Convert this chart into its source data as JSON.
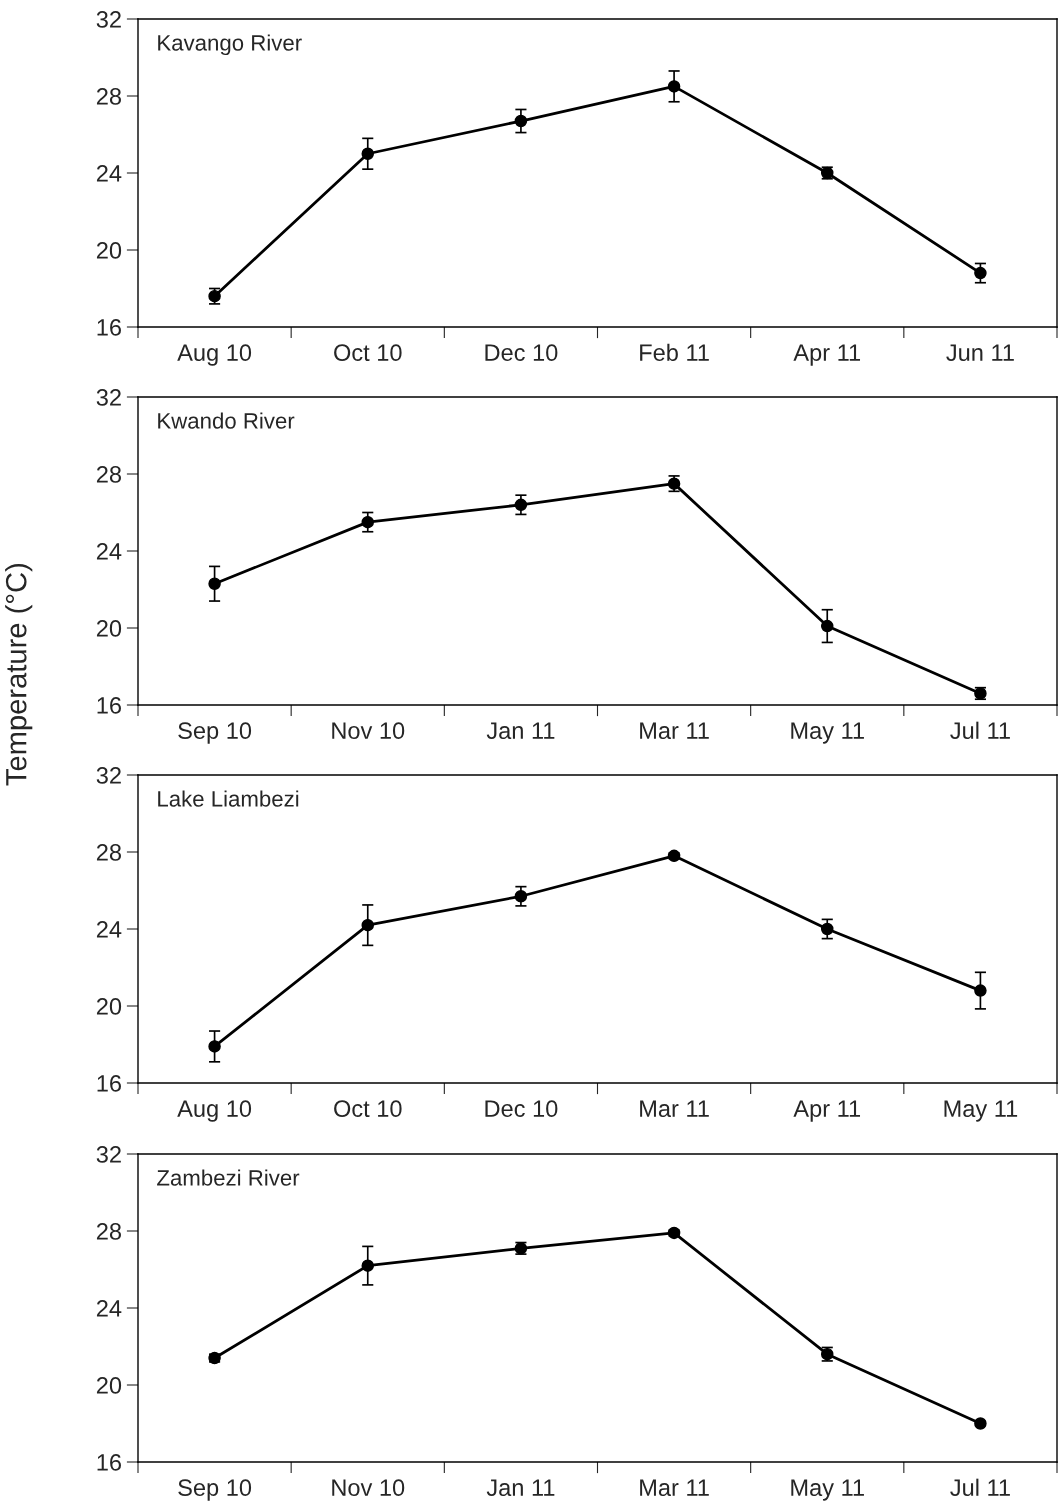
{
  "chart_data": [
    {
      "type": "line",
      "title": "Kavango River",
      "categories": [
        "Aug 10",
        "Oct 10",
        "Dec 10",
        "Feb 11",
        "Apr 11",
        "Jun 11"
      ],
      "series": [
        {
          "color": "#000000",
          "values": [
            17.6,
            25.0,
            26.7,
            28.5,
            24.0,
            18.8
          ],
          "errors": [
            0.4,
            0.8,
            0.6,
            0.8,
            0.3,
            0.5
          ]
        }
      ],
      "ylim": [
        16,
        32
      ],
      "yticks": [
        16,
        20,
        24,
        28,
        32
      ],
      "marker": "circle",
      "line_style": "solid",
      "grid": false,
      "legend": false
    },
    {
      "type": "line",
      "title": "Kwando River",
      "ylabel": "Temperature (°C)",
      "categories": [
        "Sep 10",
        "Nov 10",
        "Jan 11",
        "Mar 11",
        "May 11",
        "Jul 11"
      ],
      "series": [
        {
          "color": "#000000",
          "values": [
            22.3,
            25.5,
            26.4,
            27.5,
            20.1,
            16.6
          ],
          "errors": [
            0.9,
            0.5,
            0.5,
            0.4,
            0.85,
            0.3
          ]
        }
      ],
      "ylim": [
        16,
        32
      ],
      "yticks": [
        16,
        20,
        24,
        28,
        32
      ],
      "marker": "circle",
      "line_style": "solid",
      "grid": false,
      "legend": false
    },
    {
      "type": "line",
      "title": "Lake Liambezi",
      "categories": [
        "Aug 10",
        "Oct 10",
        "Dec 10",
        "Mar 11",
        "Apr 11",
        "May 11"
      ],
      "series": [
        {
          "color": "#000000",
          "values": [
            17.9,
            24.2,
            25.7,
            27.8,
            24.0,
            20.8
          ],
          "errors": [
            0.8,
            1.05,
            0.5,
            0.15,
            0.5,
            0.95
          ]
        }
      ],
      "ylim": [
        16,
        32
      ],
      "yticks": [
        16,
        20,
        24,
        28,
        32
      ],
      "marker": "circle",
      "line_style": "solid",
      "grid": false,
      "legend": false
    },
    {
      "type": "line",
      "title": "Zambezi River",
      "categories": [
        "Sep 10",
        "Nov 10",
        "Jan 11",
        "Mar 11",
        "May 11",
        "Jul 11"
      ],
      "series": [
        {
          "color": "#000000",
          "values": [
            21.4,
            26.2,
            27.1,
            27.9,
            21.6,
            18.0
          ],
          "errors": [
            0.2,
            1.0,
            0.3,
            0.15,
            0.35,
            0.1
          ]
        }
      ],
      "ylim": [
        16,
        32
      ],
      "yticks": [
        16,
        20,
        24,
        28,
        32
      ],
      "marker": "circle",
      "line_style": "solid",
      "grid": false,
      "legend": false
    }
  ]
}
